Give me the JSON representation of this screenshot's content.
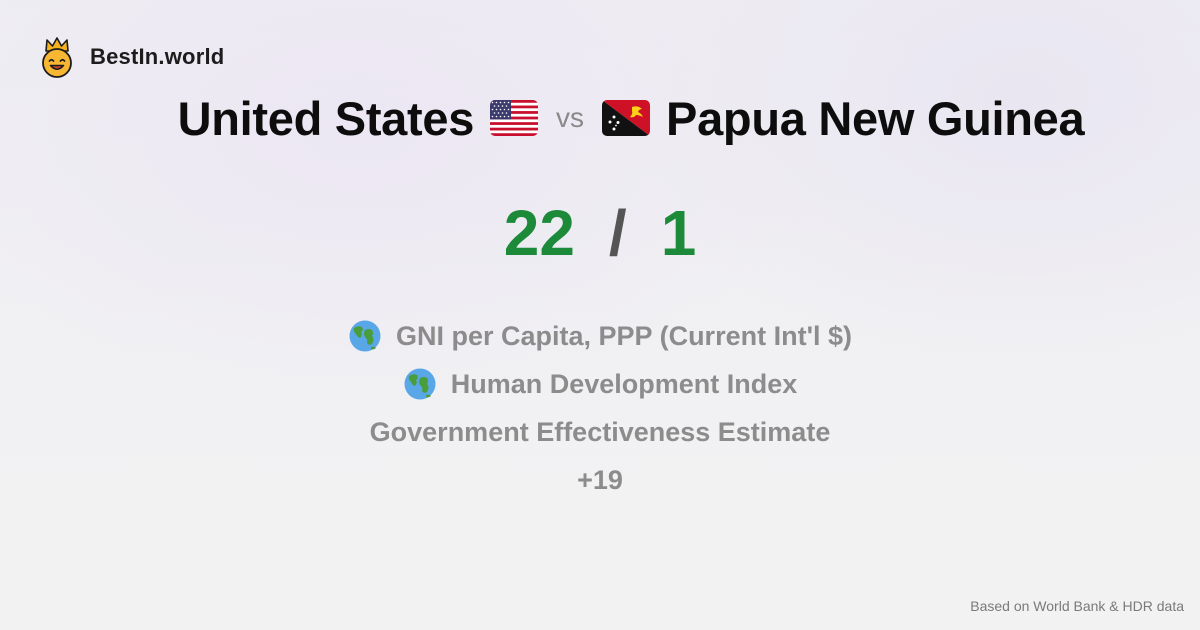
{
  "brand": {
    "name": "BestIn.world",
    "logo_icon": "crowned-smiley-icon"
  },
  "comparison": {
    "left": {
      "name": "United States",
      "flag_icon": "us-flag-icon"
    },
    "vs_label": "vs",
    "right": {
      "name": "Papua New Guinea",
      "flag_icon": "png-flag-icon"
    }
  },
  "score": {
    "left": "22",
    "separator": "/",
    "right": "1",
    "color": "#1d8a3a"
  },
  "metrics": [
    {
      "label": "GNI per Capita, PPP (Current Int'l $)",
      "icon": "globe-icon"
    },
    {
      "label": "Human Development Index",
      "icon": "globe-icon"
    },
    {
      "label": "Government Effectiveness Estimate",
      "icon": ""
    },
    {
      "label": "+19",
      "icon": ""
    }
  ],
  "footer": {
    "source": "Based on World Bank & HDR data"
  }
}
